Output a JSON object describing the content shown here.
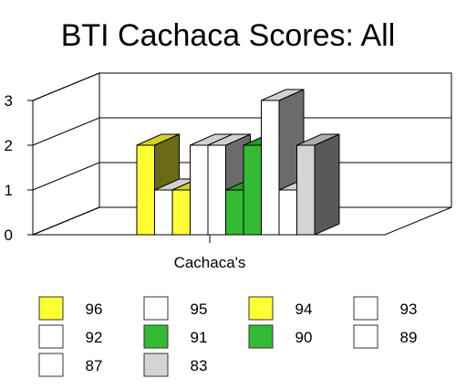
{
  "chart_data": {
    "type": "bar",
    "title": "BTI Cachaca Scores:  All",
    "categories": [
      "Cachaca's"
    ],
    "ylim": [
      0,
      3
    ],
    "yticks": [
      "0",
      "1",
      "2",
      "3"
    ],
    "grid": true,
    "legend_position": "bottom",
    "series": [
      {
        "name": "96",
        "values": [
          2
        ],
        "color": "#FFFF33"
      },
      {
        "name": "95",
        "values": [
          1
        ],
        "color": "#FFFFFF"
      },
      {
        "name": "94",
        "values": [
          1
        ],
        "color": "#FFFF33"
      },
      {
        "name": "93",
        "values": [
          2
        ],
        "color": "#FFFFFF"
      },
      {
        "name": "92",
        "values": [
          2
        ],
        "color": "#FFFFFF"
      },
      {
        "name": "91",
        "values": [
          1
        ],
        "color": "#33BB33"
      },
      {
        "name": "90",
        "values": [
          2
        ],
        "color": "#33BB33"
      },
      {
        "name": "89",
        "values": [
          3
        ],
        "color": "#FFFFFF"
      },
      {
        "name": "87",
        "values": [
          1
        ],
        "color": "#FFFFFF"
      },
      {
        "name": "83",
        "values": [
          2
        ],
        "color": "#D4D4D4"
      }
    ]
  }
}
